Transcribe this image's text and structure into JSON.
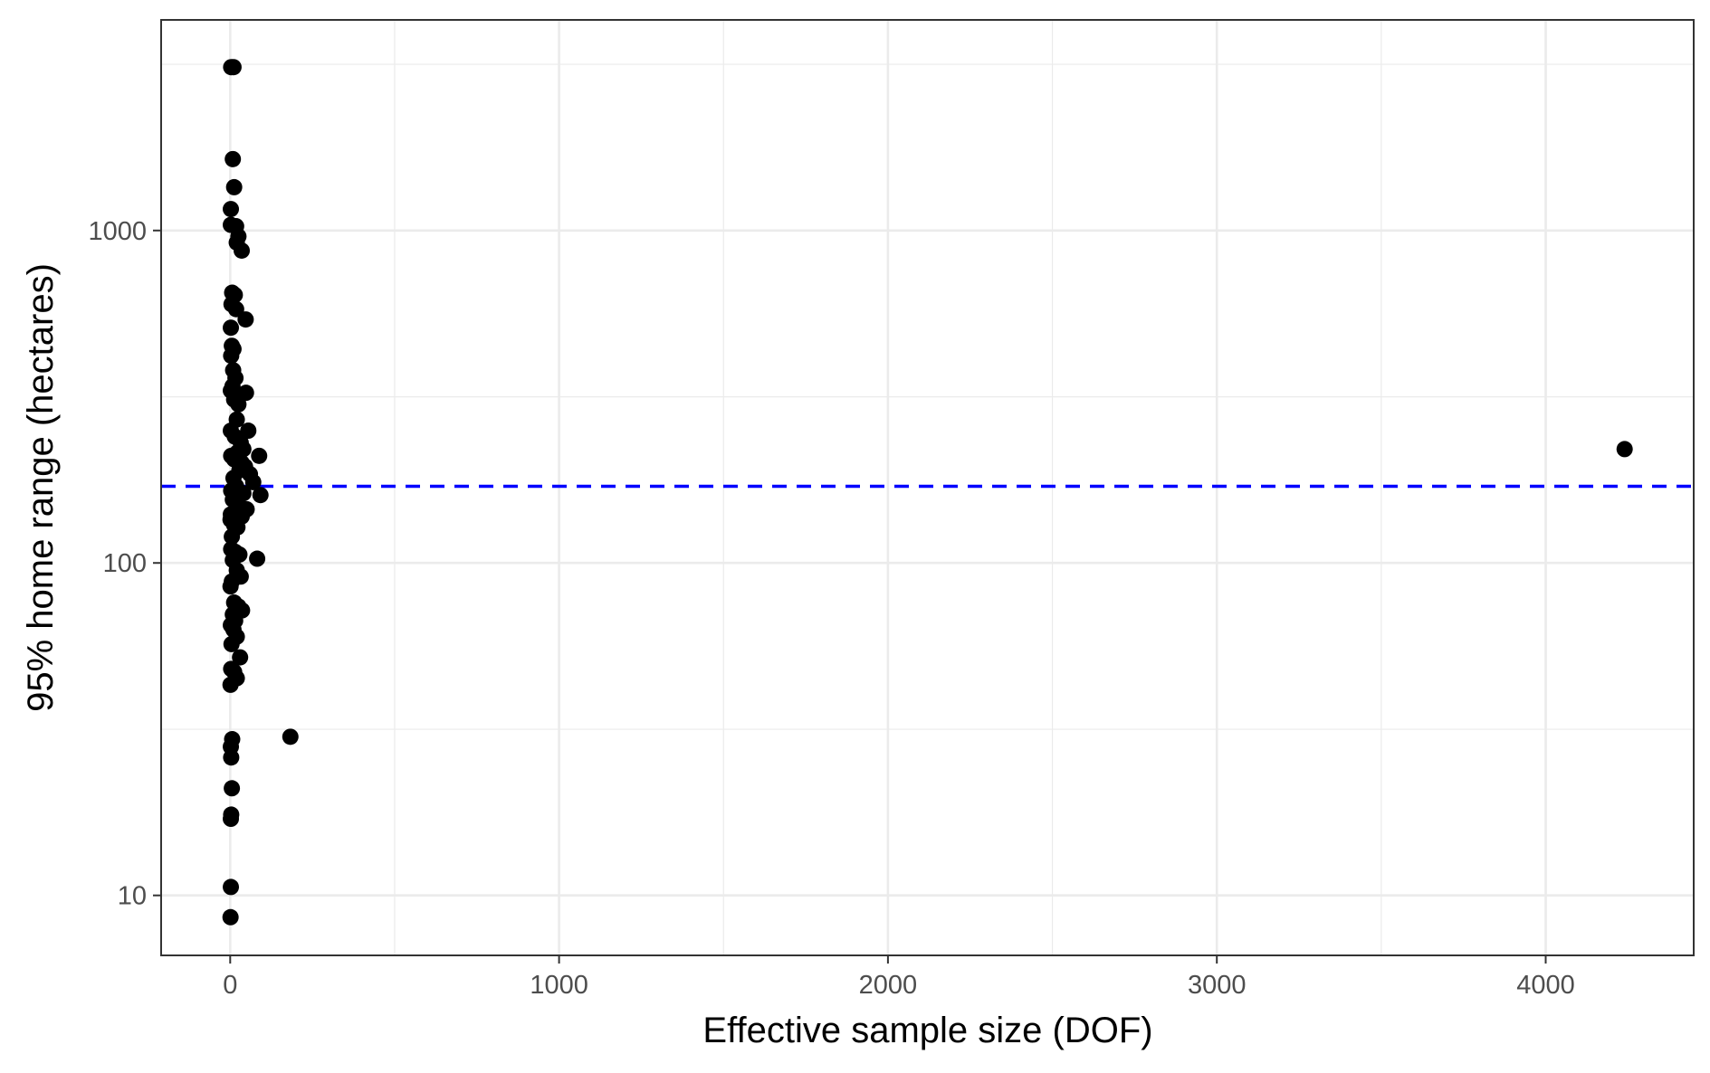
{
  "chart_data": {
    "type": "scatter",
    "title": "",
    "xlabel": "Effective sample size (DOF)",
    "ylabel": "95% home range (hectares)",
    "xlim": [
      -210,
      4450
    ],
    "ylim": [
      6.6,
      4300
    ],
    "y_scale": "log10",
    "x_ticks": [
      0,
      1000,
      2000,
      3000,
      4000
    ],
    "x_tick_labels": [
      "0",
      "1000",
      "2000",
      "3000",
      "4000"
    ],
    "x_minor_ticks": [
      500,
      1500,
      2500,
      3500
    ],
    "y_ticks": [
      10,
      100,
      1000
    ],
    "y_tick_labels": [
      "10",
      "100",
      "1000"
    ],
    "y_minor_ticks": [
      31.6,
      316,
      3162
    ],
    "grid": true,
    "legend": "none",
    "colors": {
      "points": "#000000",
      "reference_line": "#0000ff",
      "grid": "#ebebeb",
      "panel_border": "#333333"
    },
    "reference_line": {
      "orientation": "horizontal",
      "y": 170,
      "style": "dashed"
    },
    "series": [
      {
        "points": [
          [
            3,
            3100
          ],
          [
            10,
            3100
          ],
          [
            8,
            1640
          ],
          [
            12,
            1350
          ],
          [
            2,
            1160
          ],
          [
            2,
            1040
          ],
          [
            18,
            1030
          ],
          [
            25,
            960
          ],
          [
            20,
            920
          ],
          [
            35,
            870
          ],
          [
            6,
            650
          ],
          [
            14,
            640
          ],
          [
            4,
            600
          ],
          [
            18,
            580
          ],
          [
            47,
            540
          ],
          [
            2,
            510
          ],
          [
            5,
            450
          ],
          [
            10,
            440
          ],
          [
            3,
            420
          ],
          [
            9,
            380
          ],
          [
            16,
            360
          ],
          [
            7,
            340
          ],
          [
            2,
            330
          ],
          [
            48,
            325
          ],
          [
            12,
            310
          ],
          [
            25,
            300
          ],
          [
            20,
            270
          ],
          [
            2,
            250
          ],
          [
            55,
            250
          ],
          [
            14,
            240
          ],
          [
            32,
            230
          ],
          [
            40,
            220
          ],
          [
            22,
            215
          ],
          [
            3,
            210
          ],
          [
            12,
            205
          ],
          [
            88,
            210
          ],
          [
            35,
            200
          ],
          [
            45,
            195
          ],
          [
            28,
            190
          ],
          [
            60,
            185
          ],
          [
            10,
            180
          ],
          [
            70,
            175
          ],
          [
            18,
            170
          ],
          [
            3,
            165
          ],
          [
            40,
            162
          ],
          [
            92,
            160
          ],
          [
            8,
            155
          ],
          [
            25,
            150
          ],
          [
            50,
            145
          ],
          [
            2,
            140
          ],
          [
            15,
            140
          ],
          [
            35,
            138
          ],
          [
            1,
            135
          ],
          [
            12,
            130
          ],
          [
            22,
            128
          ],
          [
            5,
            120
          ],
          [
            3,
            110
          ],
          [
            15,
            108
          ],
          [
            28,
            106
          ],
          [
            82,
            103
          ],
          [
            8,
            102
          ],
          [
            20,
            95
          ],
          [
            32,
            91
          ],
          [
            5,
            88
          ],
          [
            1,
            85
          ],
          [
            12,
            76
          ],
          [
            25,
            74
          ],
          [
            36,
            72
          ],
          [
            8,
            70
          ],
          [
            15,
            67
          ],
          [
            2,
            65
          ],
          [
            10,
            63
          ],
          [
            20,
            60
          ],
          [
            4,
            57
          ],
          [
            30,
            52
          ],
          [
            3,
            48
          ],
          [
            12,
            47
          ],
          [
            20,
            45
          ],
          [
            1,
            43
          ],
          [
            183,
            30
          ],
          [
            6,
            29.5
          ],
          [
            2,
            28
          ],
          [
            3,
            26
          ],
          [
            5,
            21
          ],
          [
            3,
            17.5
          ],
          [
            2,
            17
          ],
          [
            2,
            10.6
          ],
          [
            1,
            8.6
          ],
          [
            4240,
            220
          ]
        ]
      }
    ]
  }
}
